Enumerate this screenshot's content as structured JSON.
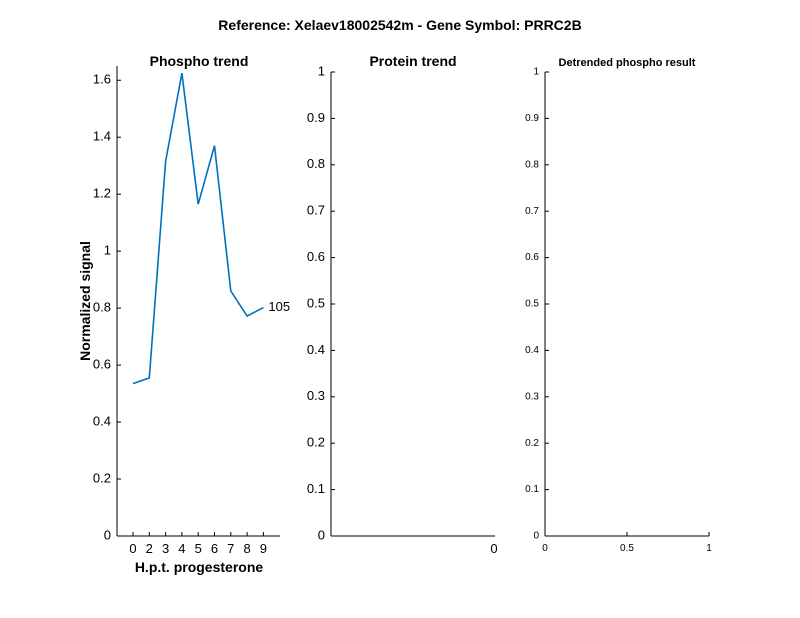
{
  "figure": {
    "suptitle": "Reference:  Xelaev18002542m - Gene Symbol:  PRRC2B"
  },
  "chart_data": [
    {
      "type": "line",
      "title": "Phospho trend",
      "xlabel": "H.p.t. progesterone",
      "ylabel": "Normalized signal",
      "categories": [
        "0",
        "2",
        "3",
        "4",
        "5",
        "6",
        "7",
        "8",
        "9"
      ],
      "series": [
        {
          "values": [
            0.535,
            0.555,
            1.315,
            1.625,
            1.165,
            1.37,
            0.86,
            0.772,
            0.802
          ],
          "end_label": "105",
          "color": "#0072bd"
        }
      ],
      "ylim": [
        0,
        1.65
      ],
      "yticks": [
        "0",
        "0.2",
        "0.4",
        "0.6",
        "0.8",
        "1",
        "1.2",
        "1.4",
        "1.6"
      ],
      "grid": false
    },
    {
      "type": "line",
      "title": "Protein trend",
      "xticks": [
        "0"
      ],
      "yticks": [
        "0",
        "0.1",
        "0.2",
        "0.3",
        "0.4",
        "0.5",
        "0.6",
        "0.7",
        "0.8",
        "0.9",
        "1"
      ],
      "ylim": [
        0,
        1
      ],
      "series": [],
      "grid": false
    },
    {
      "type": "line",
      "title": "Detrended phospho result",
      "xlim": [
        0,
        1
      ],
      "xticks": [
        "0",
        "0.5",
        "1"
      ],
      "yticks": [
        "0",
        "0.1",
        "0.2",
        "0.3",
        "0.4",
        "0.5",
        "0.6",
        "0.7",
        "0.8",
        "0.9",
        "1"
      ],
      "ylim": [
        0,
        1
      ],
      "series": [],
      "grid": false
    }
  ]
}
